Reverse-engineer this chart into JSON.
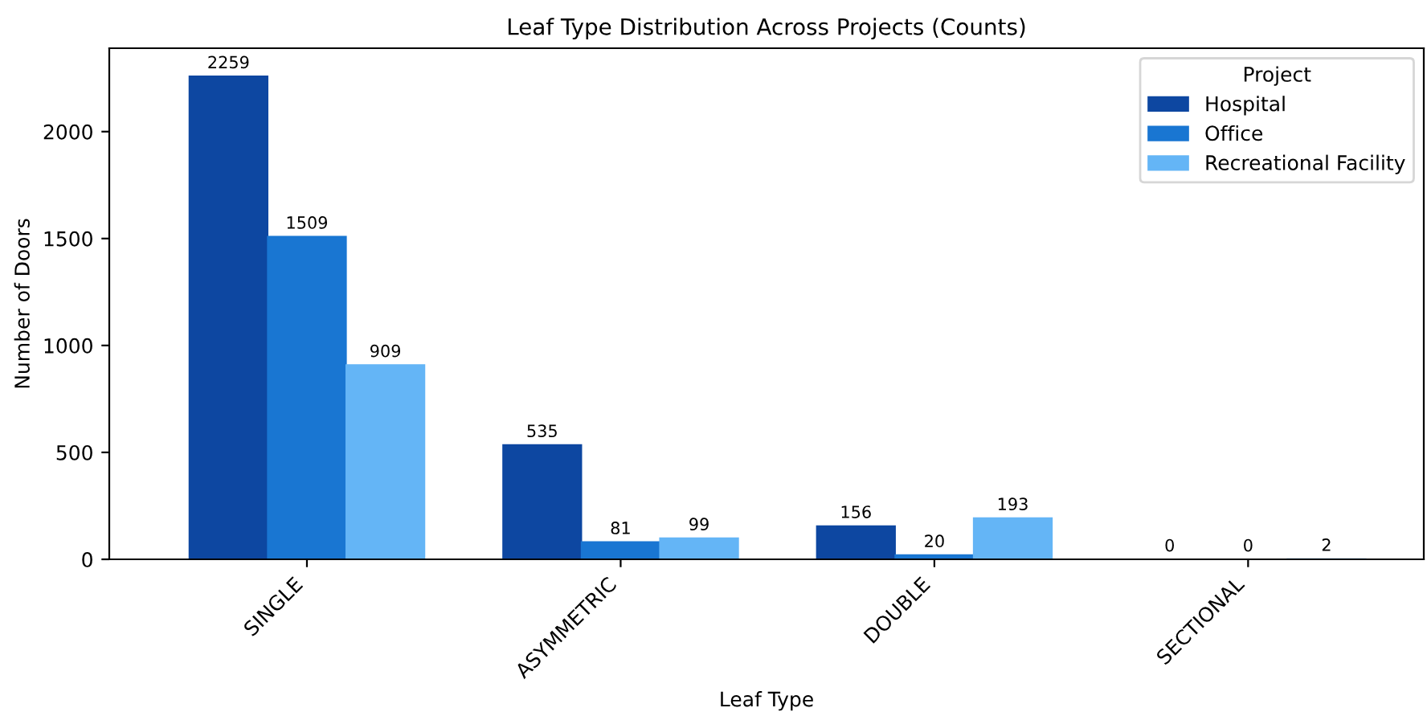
{
  "chart_data": {
    "type": "bar",
    "title": "Leaf Type Distribution Across Projects (Counts)",
    "xlabel": "Leaf Type",
    "ylabel": "Number of Doors",
    "legend_title": "Project",
    "categories": [
      "SINGLE",
      "ASYMMETRIC",
      "DOUBLE",
      "SECTIONAL"
    ],
    "series": [
      {
        "name": "Hospital",
        "color": "#0d47a1",
        "values": [
          2259,
          535,
          156,
          0
        ]
      },
      {
        "name": "Office",
        "color": "#1976d2",
        "values": [
          1509,
          81,
          20,
          0
        ]
      },
      {
        "name": "Recreational Facility",
        "color": "#64b5f6",
        "values": [
          909,
          99,
          193,
          2
        ]
      }
    ],
    "ylim": [
      0,
      2390
    ],
    "yticks": [
      0,
      500,
      1000,
      1500,
      2000
    ],
    "data_labels": true,
    "legend": "top right",
    "grid": false
  }
}
